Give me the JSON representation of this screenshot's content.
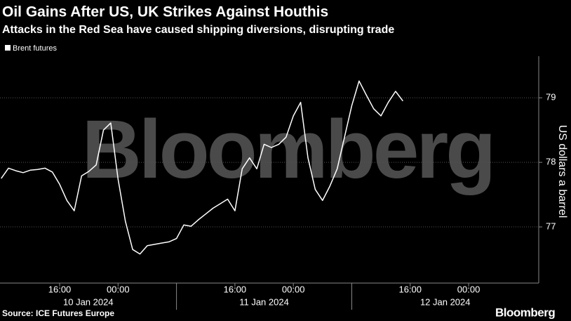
{
  "chart_data": {
    "type": "line",
    "title": "Oil Gains After US, UK Strikes Against Houthis",
    "subtitle": "Attacks in the Red Sea have caused shipping diversions, disrupting trade",
    "y_axis_label": "US dollars a barrel",
    "source": "Source: ICE Futures Europe",
    "watermark": "Bloomberg",
    "brand": "Bloomberg",
    "grid": true,
    "x": [
      "2024-01-10T08:00",
      "2024-01-10T09:00",
      "2024-01-10T10:00",
      "2024-01-10T11:00",
      "2024-01-10T12:00",
      "2024-01-10T13:00",
      "2024-01-10T14:00",
      "2024-01-10T15:00",
      "2024-01-10T16:00",
      "2024-01-10T17:00",
      "2024-01-10T18:00",
      "2024-01-10T19:00",
      "2024-01-10T20:00",
      "2024-01-10T21:00",
      "2024-01-10T22:00",
      "2024-01-10T23:00",
      "2024-01-11T00:00",
      "2024-01-11T01:00",
      "2024-01-11T02:00",
      "2024-01-11T03:00",
      "2024-01-11T04:00",
      "2024-01-11T05:00",
      "2024-01-11T06:00",
      "2024-01-11T07:00",
      "2024-01-11T08:00",
      "2024-01-11T09:00",
      "2024-01-11T10:00",
      "2024-01-11T11:00",
      "2024-01-11T12:00",
      "2024-01-11T13:00",
      "2024-01-11T14:00",
      "2024-01-11T15:00",
      "2024-01-11T16:00",
      "2024-01-11T17:00",
      "2024-01-11T18:00",
      "2024-01-11T19:00",
      "2024-01-11T20:00",
      "2024-01-11T21:00",
      "2024-01-11T22:00",
      "2024-01-11T23:00",
      "2024-01-12T00:00",
      "2024-01-12T01:00",
      "2024-01-12T02:00",
      "2024-01-12T03:00",
      "2024-01-12T04:00",
      "2024-01-12T05:00",
      "2024-01-12T06:00",
      "2024-01-12T07:00",
      "2024-01-12T08:00",
      "2024-01-12T09:00",
      "2024-01-12T10:00",
      "2024-01-12T11:00",
      "2024-01-12T12:00",
      "2024-01-12T13:00",
      "2024-01-12T14:00",
      "2024-01-12T15:00"
    ],
    "series": [
      {
        "name": "Brent futures",
        "color": "#ffffff",
        "values": [
          77.75,
          77.91,
          77.87,
          77.84,
          77.88,
          77.89,
          77.91,
          77.85,
          77.66,
          77.41,
          77.25,
          77.79,
          77.86,
          77.96,
          78.5,
          78.61,
          77.74,
          77.09,
          76.65,
          76.58,
          76.71,
          76.73,
          76.75,
          76.77,
          76.82,
          77.03,
          77.01,
          77.11,
          77.2,
          77.29,
          77.36,
          77.43,
          77.25,
          77.9,
          78.07,
          77.9,
          78.28,
          78.23,
          78.28,
          78.39,
          78.72,
          78.93,
          78.07,
          77.58,
          77.41,
          77.63,
          77.9,
          78.39,
          78.88,
          79.26,
          79.04,
          78.83,
          78.72,
          78.93,
          79.1,
          78.95
        ]
      }
    ],
    "xlim": [
      "2024-01-10T07:50",
      "2024-01-13T09:36"
    ],
    "xticks": [
      {
        "value": "2024-01-10T16:00",
        "label": "16:00"
      },
      {
        "value": "2024-01-11T00:00",
        "label": "00:00"
      },
      {
        "value": "2024-01-11T16:00",
        "label": "16:00"
      },
      {
        "value": "2024-01-12T00:00",
        "label": "00:00"
      },
      {
        "value": "2024-01-12T16:00",
        "label": "16:00"
      },
      {
        "value": "2024-01-13T00:00",
        "label": "00:00"
      }
    ],
    "day_dividers": [
      "2024-01-11T08:00",
      "2024-01-12T08:00"
    ],
    "date_labels": [
      "10 Jan 2024",
      "11 Jan 2024",
      "12 Jan 2024"
    ],
    "ylim": [
      76.13,
      79.59
    ],
    "yticks": [
      77,
      78,
      79
    ]
  }
}
